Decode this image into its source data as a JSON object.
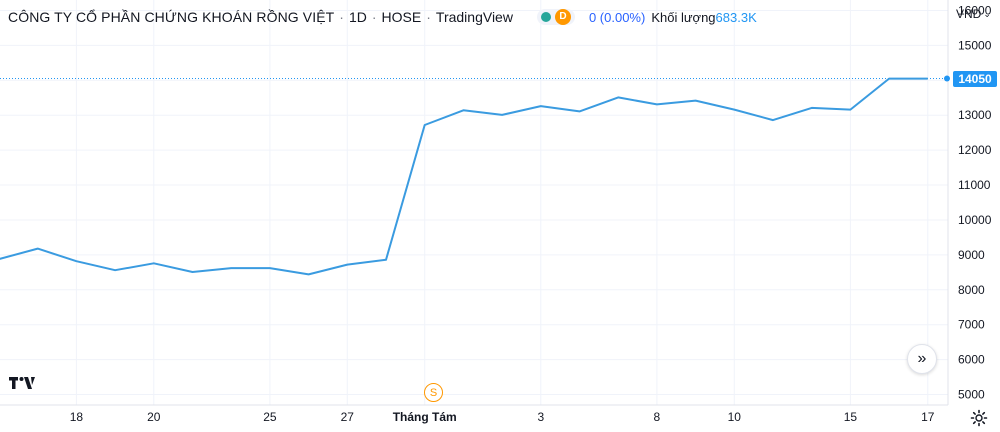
{
  "legend": {
    "symbol_name": "CÔNG TY CỔ PHẦN CHỨNG KHOÁN RỒNG VIỆT",
    "separator": "·",
    "interval": "1D",
    "exchange": "HOSE",
    "provider": "TradingView",
    "status_letter": "D",
    "change": "0 (0.00%)",
    "volume_label": "Khối lượng",
    "volume_value": "683.3K"
  },
  "currency_selector": {
    "label": "VND",
    "chevron": "⌄"
  },
  "last_price_label": "14050",
  "split_marker_label": "S",
  "scroll_button_label": "»",
  "icons": {
    "logo": "tradingview-logo-icon",
    "scroll": "scroll-to-realtime-icon",
    "settings": "gear-icon",
    "split": "split-event-icon",
    "status": "market-status-icon"
  },
  "colors": {
    "line": "#3a9be0",
    "price_tag": "#2196f3",
    "grid": "#f0f3fa",
    "change": "#2962ff",
    "volume_value": "#2196f3",
    "status_open": "#26a69a",
    "status_delayed": "#ff9800"
  },
  "chart_data": {
    "type": "line",
    "title": "",
    "xlabel": "",
    "ylabel": "",
    "ylim": [
      4700,
      16300
    ],
    "y_ticks": [
      "5000",
      "6000",
      "7000",
      "8000",
      "9000",
      "10000",
      "11000",
      "12000",
      "13000",
      "14000",
      "15000",
      "16000"
    ],
    "x_ticks": [
      "18",
      "20",
      "25",
      "27",
      "Tháng Tám",
      "3",
      "8",
      "10",
      "15",
      "17"
    ],
    "x_tick_index": [
      2,
      4,
      7,
      9,
      11,
      14,
      17,
      19,
      22,
      24
    ],
    "last_value": 14050,
    "series": [
      {
        "values": [
          8880,
          9180,
          8820,
          8560,
          8760,
          8510,
          8620,
          8620,
          8440,
          8720,
          8860,
          12720,
          13140,
          13010,
          13260,
          13110,
          13510,
          13310,
          13420,
          13160,
          12860,
          13210,
          13160,
          14050,
          14050
        ]
      }
    ]
  }
}
